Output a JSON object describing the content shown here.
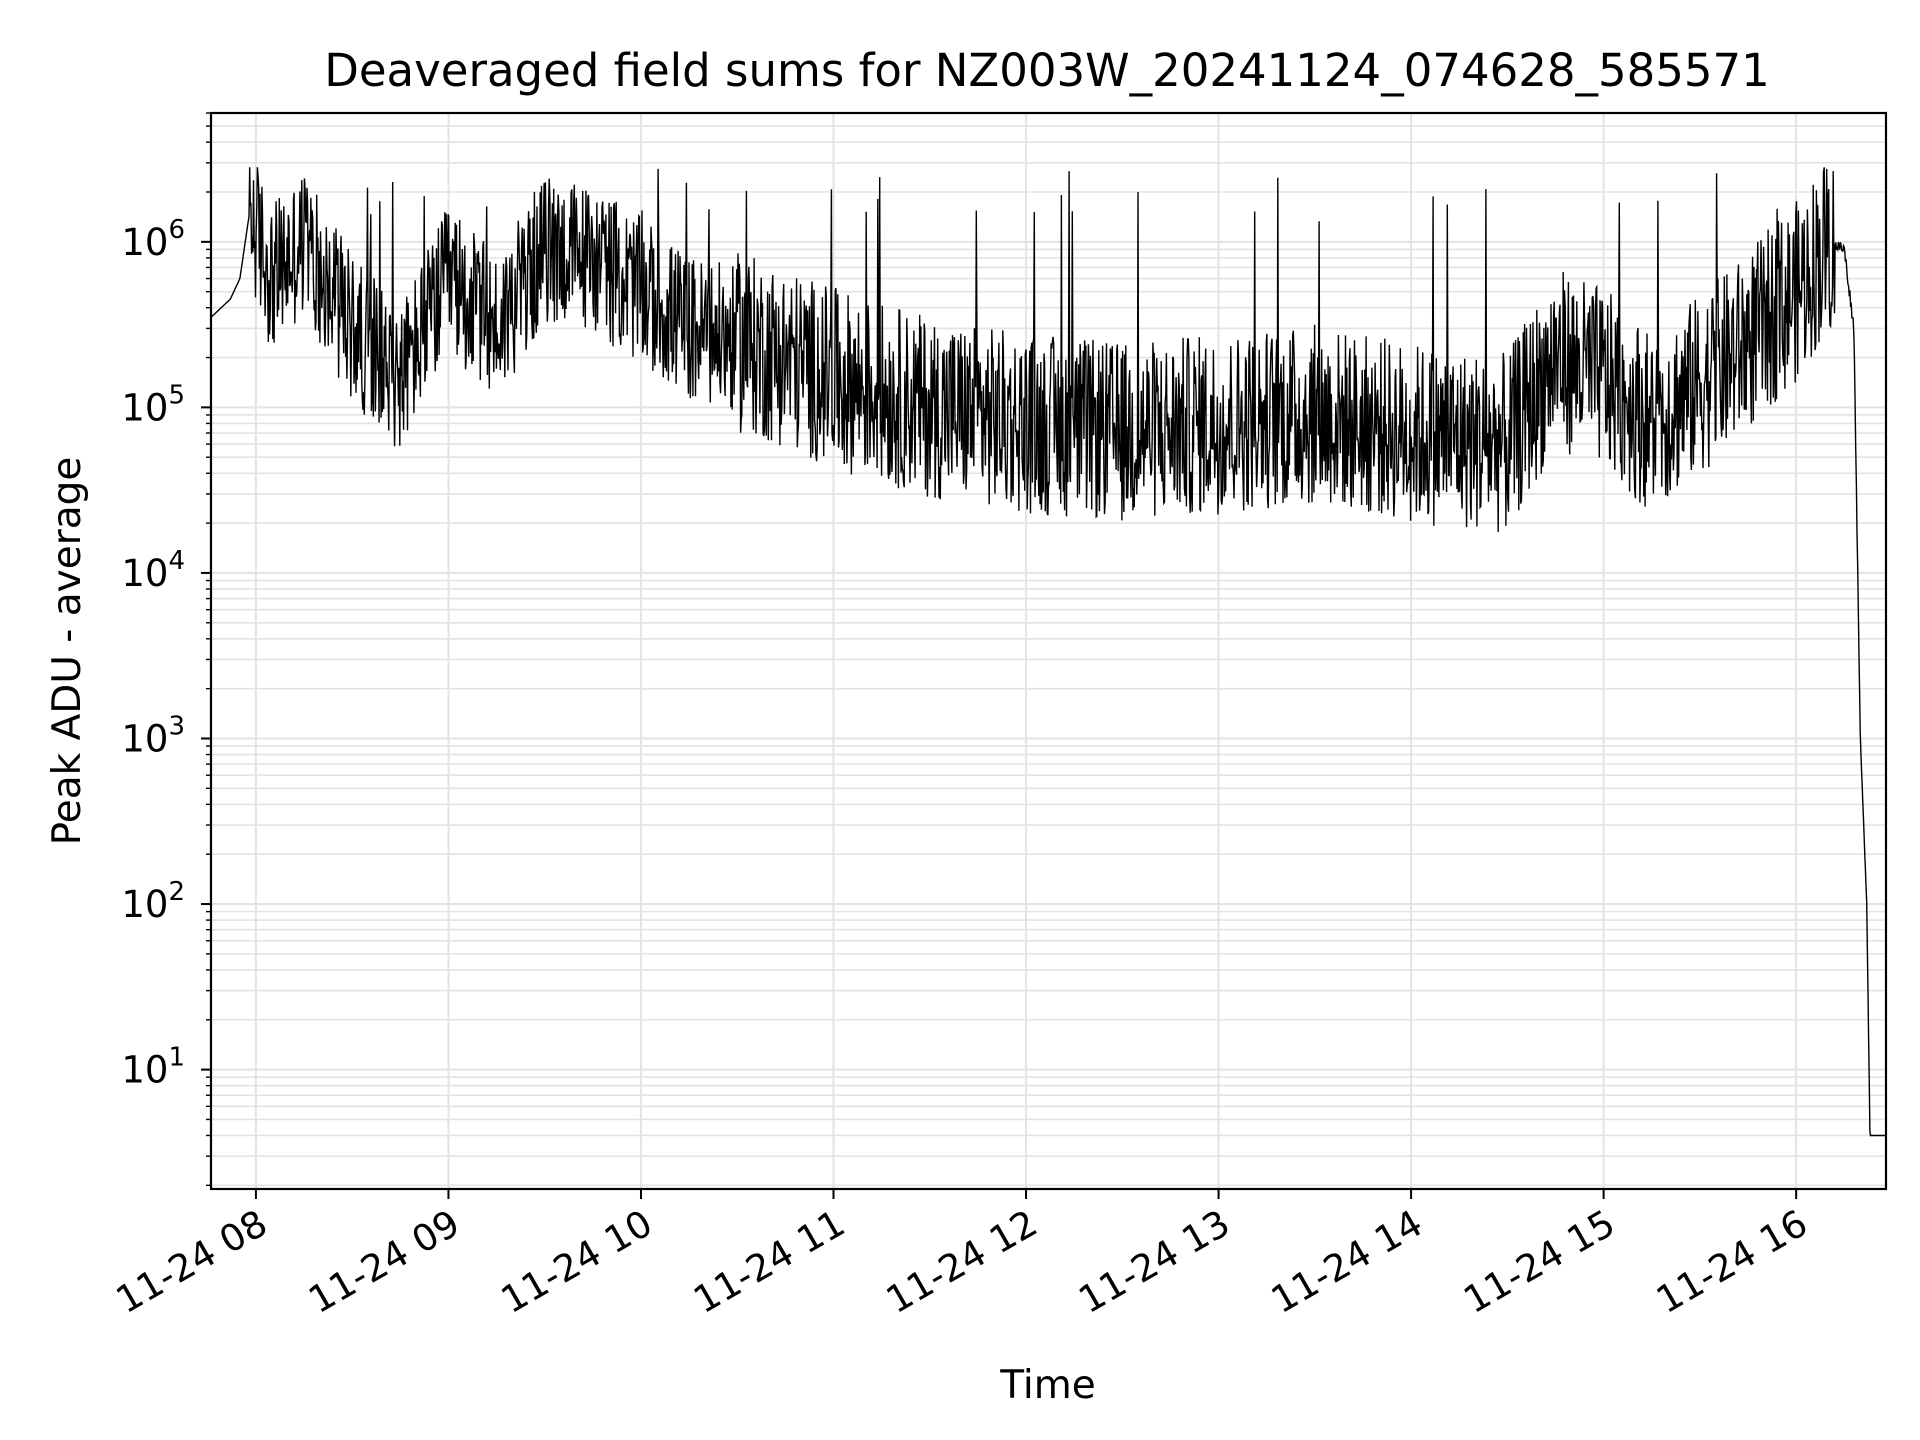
{
  "chart_data": {
    "type": "line",
    "title": "Deaveraged field sums for NZ003W_20241124_074628_585571",
    "xlabel": "Time",
    "ylabel": "Peak ADU - average",
    "yscale": "log",
    "grid": true,
    "line_color": "#000000",
    "xlim": [
      "2024-11-24 07:46",
      "2024-11-24 16:28"
    ],
    "ylim": [
      1.9,
      6000000
    ],
    "x_ticks": [
      {
        "t": "2024-11-24 08:00",
        "label": "11-24 08"
      },
      {
        "t": "2024-11-24 09:00",
        "label": "11-24 09"
      },
      {
        "t": "2024-11-24 10:00",
        "label": "11-24 10"
      },
      {
        "t": "2024-11-24 11:00",
        "label": "11-24 11"
      },
      {
        "t": "2024-11-24 12:00",
        "label": "11-24 12"
      },
      {
        "t": "2024-11-24 13:00",
        "label": "11-24 13"
      },
      {
        "t": "2024-11-24 14:00",
        "label": "11-24 14"
      },
      {
        "t": "2024-11-24 15:00",
        "label": "11-24 15"
      },
      {
        "t": "2024-11-24 16:00",
        "label": "11-24 16"
      }
    ],
    "y_ticks": [
      {
        "value": 10,
        "base": "10",
        "exp": "1"
      },
      {
        "value": 100,
        "base": "10",
        "exp": "2"
      },
      {
        "value": 1000,
        "base": "10",
        "exp": "3"
      },
      {
        "value": 10000,
        "base": "10",
        "exp": "4"
      },
      {
        "value": 100000,
        "base": "10",
        "exp": "5"
      },
      {
        "value": 1000000,
        "base": "10",
        "exp": "6"
      }
    ],
    "series": [
      {
        "values": [
          [
            "2024-11-24 07:46",
            350000
          ],
          [
            "2024-11-24 07:52",
            450000
          ],
          [
            "2024-11-24 07:55",
            600000
          ],
          [
            "2024-11-24 07:58",
            1500000
          ],
          [
            "2024-11-24 08:05",
            600000
          ],
          [
            "2024-11-24 08:15",
            1000000
          ],
          [
            "2024-11-24 08:30",
            300000
          ],
          [
            "2024-11-24 08:45",
            150000
          ],
          [
            "2024-11-24 09:00",
            600000
          ],
          [
            "2024-11-24 09:15",
            300000
          ],
          [
            "2024-11-24 09:30",
            900000
          ],
          [
            "2024-11-24 09:45",
            800000
          ],
          [
            "2024-11-24 10:00",
            500000
          ],
          [
            "2024-11-24 10:15",
            300000
          ],
          [
            "2024-11-24 10:30",
            250000
          ],
          [
            "2024-11-24 10:45",
            200000
          ],
          [
            "2024-11-24 11:00",
            150000
          ],
          [
            "2024-11-24 11:30",
            100000
          ],
          [
            "2024-11-24 12:00",
            80000
          ],
          [
            "2024-11-24 12:30",
            70000
          ],
          [
            "2024-11-24 13:00",
            80000
          ],
          [
            "2024-11-24 13:30",
            90000
          ],
          [
            "2024-11-24 14:00",
            70000
          ],
          [
            "2024-11-24 14:30",
            60000
          ],
          [
            "2024-11-24 14:45",
            200000
          ],
          [
            "2024-11-24 15:00",
            150000
          ],
          [
            "2024-11-24 15:15",
            80000
          ],
          [
            "2024-11-24 15:40",
            200000
          ],
          [
            "2024-11-24 16:00",
            500000
          ],
          [
            "2024-11-24 16:10",
            1000000
          ],
          [
            "2024-11-24 16:15",
            900000
          ],
          [
            "2024-11-24 16:18",
            300000
          ],
          [
            "2024-11-24 16:20",
            1000
          ],
          [
            "2024-11-24 16:22",
            100
          ],
          [
            "2024-11-24 16:23",
            4
          ],
          [
            "2024-11-24 16:28",
            4
          ]
        ]
      }
    ]
  }
}
